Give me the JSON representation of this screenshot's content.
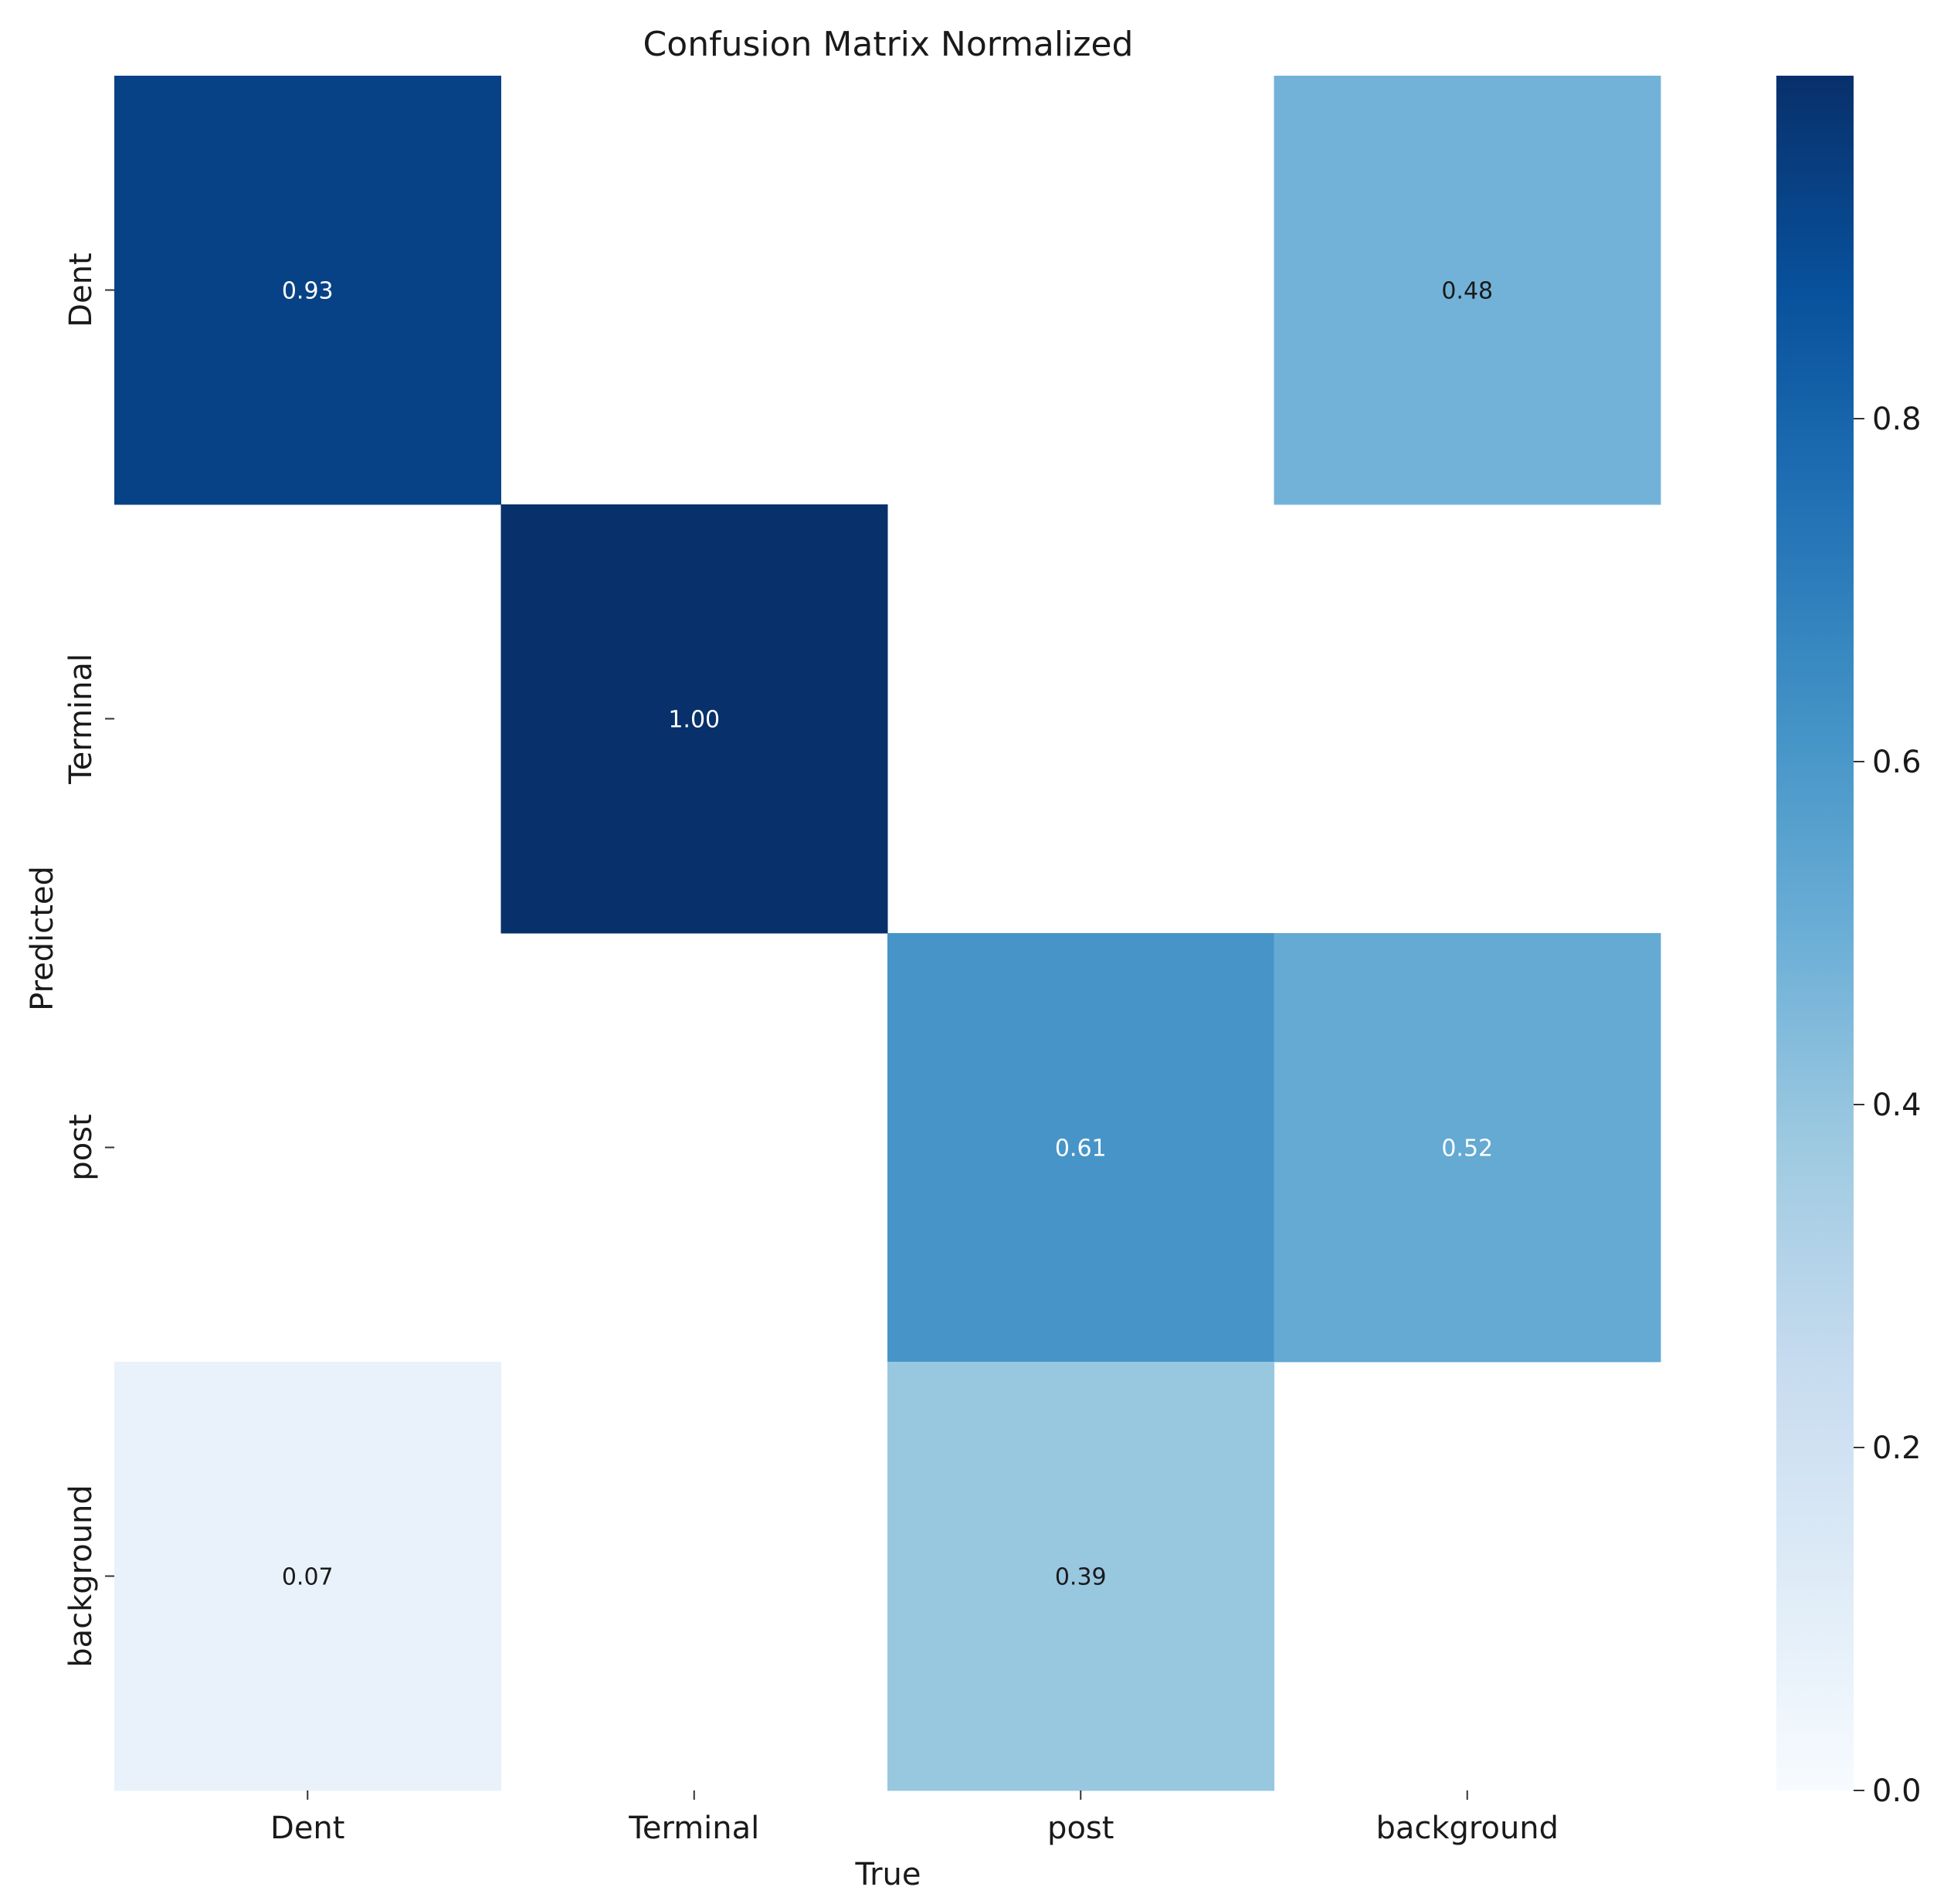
{
  "chart_data": {
    "type": "heatmap",
    "title": "Confusion Matrix Normalized",
    "xlabel": "True",
    "ylabel": "Predicted",
    "x_categories": [
      "Dent",
      "Terminal",
      "post",
      "background"
    ],
    "y_categories": [
      "Dent",
      "Terminal",
      "post",
      "background"
    ],
    "values": [
      [
        0.93,
        null,
        null,
        0.48
      ],
      [
        null,
        1.0,
        null,
        null
      ],
      [
        null,
        null,
        0.61,
        0.52
      ],
      [
        0.07,
        null,
        0.39,
        null
      ]
    ],
    "cell_labels": [
      [
        "0.93",
        "",
        "",
        "0.48"
      ],
      [
        "",
        "1.00",
        "",
        ""
      ],
      [
        "",
        "",
        "0.61",
        "0.52"
      ],
      [
        "0.07",
        "",
        "0.39",
        ""
      ]
    ],
    "colorbar": {
      "colormap": "Blues",
      "range": [
        0,
        1
      ],
      "ticks": [
        0.0,
        0.2,
        0.4,
        0.6,
        0.8
      ],
      "tick_labels": [
        "0.0",
        "0.2",
        "0.4",
        "0.6",
        "0.8"
      ]
    },
    "grid": false,
    "legend": "colorbar-right"
  }
}
